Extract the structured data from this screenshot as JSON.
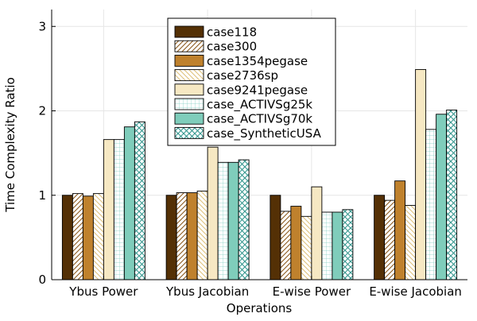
{
  "chart_data": {
    "type": "bar",
    "xlabel": "Operations",
    "ylabel": "Time Complexity Ratio",
    "ylim": [
      0,
      3.2
    ],
    "yticks": [
      0,
      1,
      2,
      3
    ],
    "grid": true,
    "legend_position": "top-center",
    "categories": [
      "Ybus Power",
      "Ybus Jacobian",
      "E-wise Power",
      "E-wise Jacobian"
    ],
    "series": [
      {
        "name": "case118",
        "color": "#543005",
        "pattern": "solid",
        "values": [
          1.0,
          1.0,
          1.0,
          1.0
        ]
      },
      {
        "name": "case300",
        "color": "#8c5a1e",
        "pattern": "diagonal",
        "values": [
          1.02,
          1.03,
          0.81,
          0.94
        ]
      },
      {
        "name": "case1354pegase",
        "color": "#bf812d",
        "pattern": "solid",
        "values": [
          0.99,
          1.03,
          0.87,
          1.17
        ]
      },
      {
        "name": "case2736sp",
        "color": "#dfc27d",
        "pattern": "diagonal-light",
        "values": [
          1.02,
          1.05,
          0.75,
          0.88
        ]
      },
      {
        "name": "case9241pegase",
        "color": "#f6e8c3",
        "pattern": "solid",
        "values": [
          1.66,
          1.57,
          1.1,
          2.49
        ]
      },
      {
        "name": "case_ACTIVSg25k",
        "color": "#80cdc1",
        "pattern": "grid",
        "values": [
          1.66,
          1.39,
          0.8,
          1.78
        ]
      },
      {
        "name": "case_ACTIVSg70k",
        "color": "#7fcdbb",
        "pattern": "solid",
        "values": [
          1.81,
          1.39,
          0.8,
          1.96
        ]
      },
      {
        "name": "case_SyntheticUSA",
        "color": "#35978f",
        "pattern": "crosshatch",
        "values": [
          1.87,
          1.42,
          0.83,
          2.01
        ]
      }
    ]
  }
}
